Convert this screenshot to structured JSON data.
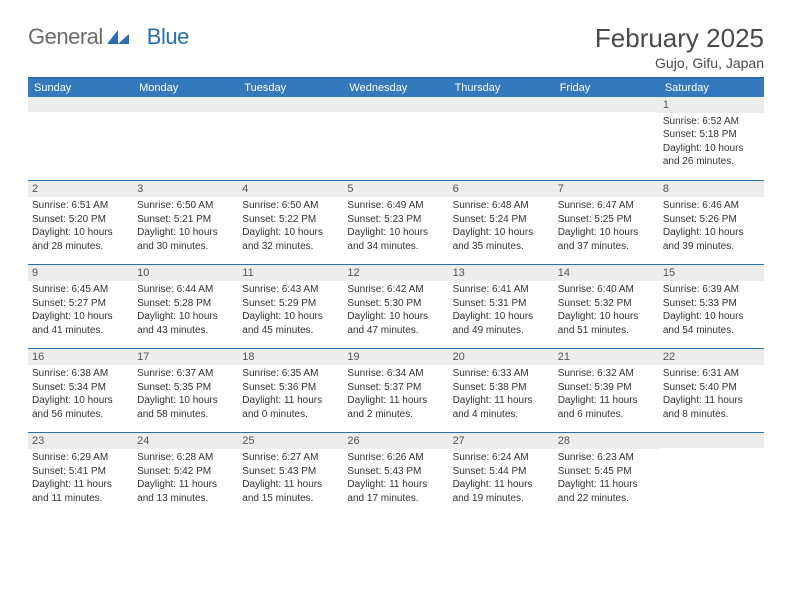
{
  "logo": {
    "general": "General",
    "blue": "Blue"
  },
  "title": "February 2025",
  "location": "Gujo, Gifu, Japan",
  "colors": {
    "header_bg": "#3478bd",
    "border": "#2a6db0",
    "daynum_bg": "#ededed",
    "text": "#333333",
    "title_color": "#4a4a4a"
  },
  "days_of_week": [
    "Sunday",
    "Monday",
    "Tuesday",
    "Wednesday",
    "Thursday",
    "Friday",
    "Saturday"
  ],
  "weeks": [
    [
      {
        "n": "",
        "sr": "",
        "ss": "",
        "dl": ""
      },
      {
        "n": "",
        "sr": "",
        "ss": "",
        "dl": ""
      },
      {
        "n": "",
        "sr": "",
        "ss": "",
        "dl": ""
      },
      {
        "n": "",
        "sr": "",
        "ss": "",
        "dl": ""
      },
      {
        "n": "",
        "sr": "",
        "ss": "",
        "dl": ""
      },
      {
        "n": "",
        "sr": "",
        "ss": "",
        "dl": ""
      },
      {
        "n": "1",
        "sr": "Sunrise: 6:52 AM",
        "ss": "Sunset: 5:18 PM",
        "dl": "Daylight: 10 hours and 26 minutes."
      }
    ],
    [
      {
        "n": "2",
        "sr": "Sunrise: 6:51 AM",
        "ss": "Sunset: 5:20 PM",
        "dl": "Daylight: 10 hours and 28 minutes."
      },
      {
        "n": "3",
        "sr": "Sunrise: 6:50 AM",
        "ss": "Sunset: 5:21 PM",
        "dl": "Daylight: 10 hours and 30 minutes."
      },
      {
        "n": "4",
        "sr": "Sunrise: 6:50 AM",
        "ss": "Sunset: 5:22 PM",
        "dl": "Daylight: 10 hours and 32 minutes."
      },
      {
        "n": "5",
        "sr": "Sunrise: 6:49 AM",
        "ss": "Sunset: 5:23 PM",
        "dl": "Daylight: 10 hours and 34 minutes."
      },
      {
        "n": "6",
        "sr": "Sunrise: 6:48 AM",
        "ss": "Sunset: 5:24 PM",
        "dl": "Daylight: 10 hours and 35 minutes."
      },
      {
        "n": "7",
        "sr": "Sunrise: 6:47 AM",
        "ss": "Sunset: 5:25 PM",
        "dl": "Daylight: 10 hours and 37 minutes."
      },
      {
        "n": "8",
        "sr": "Sunrise: 6:46 AM",
        "ss": "Sunset: 5:26 PM",
        "dl": "Daylight: 10 hours and 39 minutes."
      }
    ],
    [
      {
        "n": "9",
        "sr": "Sunrise: 6:45 AM",
        "ss": "Sunset: 5:27 PM",
        "dl": "Daylight: 10 hours and 41 minutes."
      },
      {
        "n": "10",
        "sr": "Sunrise: 6:44 AM",
        "ss": "Sunset: 5:28 PM",
        "dl": "Daylight: 10 hours and 43 minutes."
      },
      {
        "n": "11",
        "sr": "Sunrise: 6:43 AM",
        "ss": "Sunset: 5:29 PM",
        "dl": "Daylight: 10 hours and 45 minutes."
      },
      {
        "n": "12",
        "sr": "Sunrise: 6:42 AM",
        "ss": "Sunset: 5:30 PM",
        "dl": "Daylight: 10 hours and 47 minutes."
      },
      {
        "n": "13",
        "sr": "Sunrise: 6:41 AM",
        "ss": "Sunset: 5:31 PM",
        "dl": "Daylight: 10 hours and 49 minutes."
      },
      {
        "n": "14",
        "sr": "Sunrise: 6:40 AM",
        "ss": "Sunset: 5:32 PM",
        "dl": "Daylight: 10 hours and 51 minutes."
      },
      {
        "n": "15",
        "sr": "Sunrise: 6:39 AM",
        "ss": "Sunset: 5:33 PM",
        "dl": "Daylight: 10 hours and 54 minutes."
      }
    ],
    [
      {
        "n": "16",
        "sr": "Sunrise: 6:38 AM",
        "ss": "Sunset: 5:34 PM",
        "dl": "Daylight: 10 hours and 56 minutes."
      },
      {
        "n": "17",
        "sr": "Sunrise: 6:37 AM",
        "ss": "Sunset: 5:35 PM",
        "dl": "Daylight: 10 hours and 58 minutes."
      },
      {
        "n": "18",
        "sr": "Sunrise: 6:35 AM",
        "ss": "Sunset: 5:36 PM",
        "dl": "Daylight: 11 hours and 0 minutes."
      },
      {
        "n": "19",
        "sr": "Sunrise: 6:34 AM",
        "ss": "Sunset: 5:37 PM",
        "dl": "Daylight: 11 hours and 2 minutes."
      },
      {
        "n": "20",
        "sr": "Sunrise: 6:33 AM",
        "ss": "Sunset: 5:38 PM",
        "dl": "Daylight: 11 hours and 4 minutes."
      },
      {
        "n": "21",
        "sr": "Sunrise: 6:32 AM",
        "ss": "Sunset: 5:39 PM",
        "dl": "Daylight: 11 hours and 6 minutes."
      },
      {
        "n": "22",
        "sr": "Sunrise: 6:31 AM",
        "ss": "Sunset: 5:40 PM",
        "dl": "Daylight: 11 hours and 8 minutes."
      }
    ],
    [
      {
        "n": "23",
        "sr": "Sunrise: 6:29 AM",
        "ss": "Sunset: 5:41 PM",
        "dl": "Daylight: 11 hours and 11 minutes."
      },
      {
        "n": "24",
        "sr": "Sunrise: 6:28 AM",
        "ss": "Sunset: 5:42 PM",
        "dl": "Daylight: 11 hours and 13 minutes."
      },
      {
        "n": "25",
        "sr": "Sunrise: 6:27 AM",
        "ss": "Sunset: 5:43 PM",
        "dl": "Daylight: 11 hours and 15 minutes."
      },
      {
        "n": "26",
        "sr": "Sunrise: 6:26 AM",
        "ss": "Sunset: 5:43 PM",
        "dl": "Daylight: 11 hours and 17 minutes."
      },
      {
        "n": "27",
        "sr": "Sunrise: 6:24 AM",
        "ss": "Sunset: 5:44 PM",
        "dl": "Daylight: 11 hours and 19 minutes."
      },
      {
        "n": "28",
        "sr": "Sunrise: 6:23 AM",
        "ss": "Sunset: 5:45 PM",
        "dl": "Daylight: 11 hours and 22 minutes."
      },
      {
        "n": "",
        "sr": "",
        "ss": "",
        "dl": ""
      }
    ]
  ]
}
